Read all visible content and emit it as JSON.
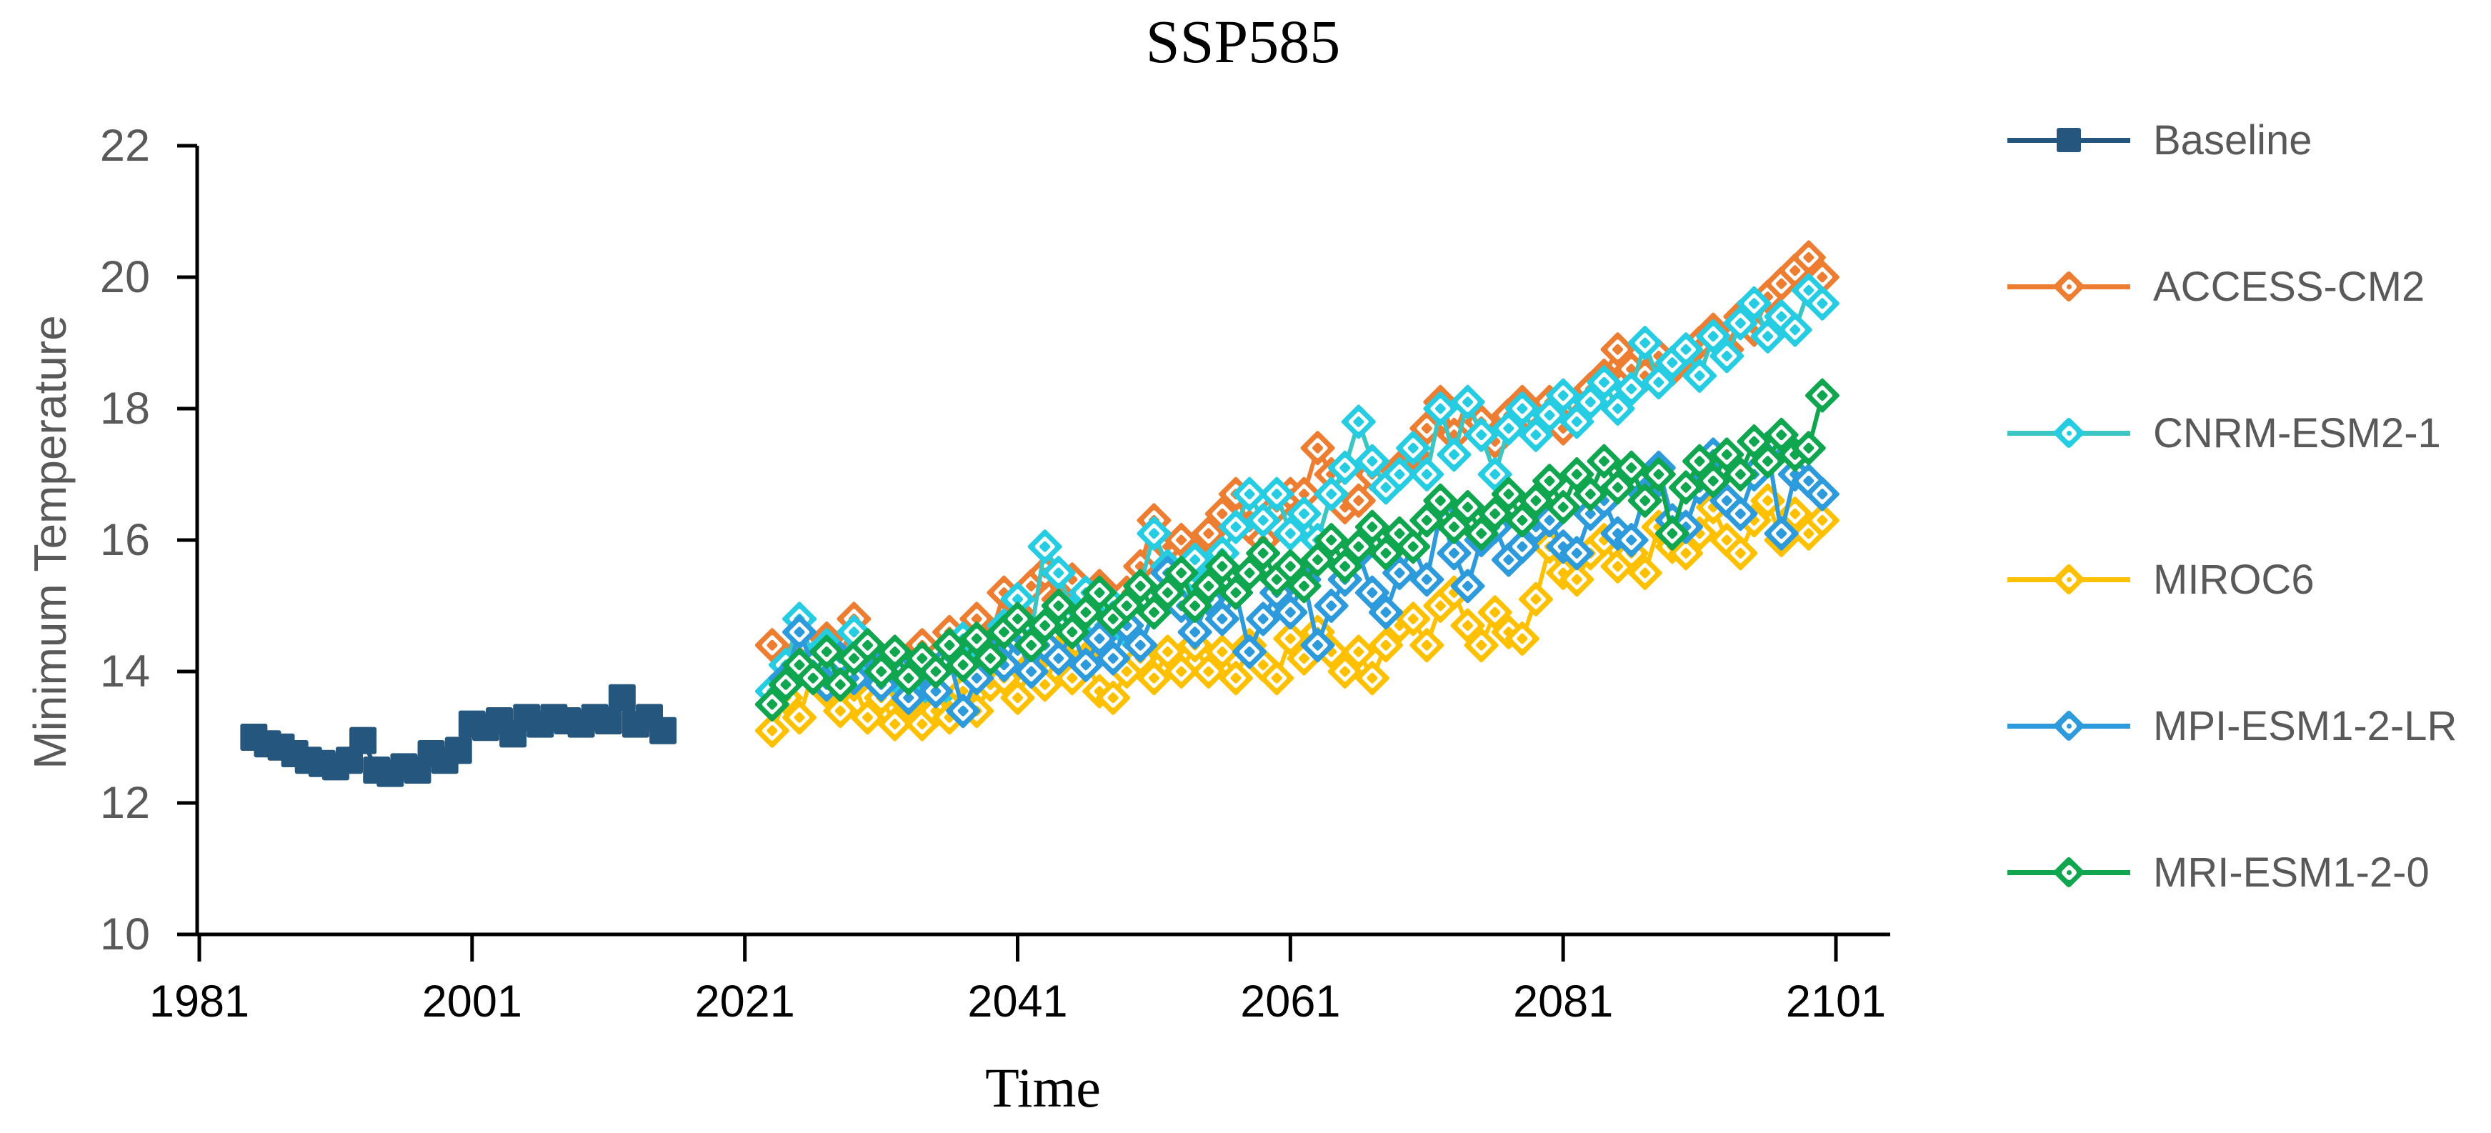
{
  "title": "SSP585",
  "colors": {
    "background": "#ffffff",
    "axis": "#000000",
    "x_tick_label": "#000000",
    "y_tick_label": "#595959",
    "gray_text": "#595959",
    "baseline": "#24567E",
    "access_cm2": "#ED7D31",
    "cnrm_esm2_1": "#26CDE2",
    "miroc6": "#FFC000",
    "mpi_esm1_2_lr": "#2D9BDB",
    "mri_esm1_2_0": "#10A64F"
  },
  "y_axis": {
    "label": "Minimum Temperature",
    "ticks": [
      "10",
      "12",
      "14",
      "16",
      "18",
      "20",
      "22"
    ],
    "min": 10,
    "max": 22
  },
  "x_axis": {
    "label": "Time",
    "ticks": [
      "1981",
      "2001",
      "2021",
      "2041",
      "2061",
      "2081",
      "2101"
    ],
    "min": 1981,
    "max": 2105
  },
  "legend": [
    {
      "label": "Baseline",
      "series": 0
    },
    {
      "label": "ACCESS-CM2",
      "series": 1
    },
    {
      "label": "CNRM-ESM2-1",
      "series": 2
    },
    {
      "label": "MIROC6",
      "series": 3
    },
    {
      "label": "MPI-ESM1-2-LR",
      "series": 4
    },
    {
      "label": "MRI-ESM1-2-0",
      "series": 5
    }
  ],
  "chart_data": {
    "type": "line",
    "title": "SSP585",
    "xlabel": "Time",
    "ylabel": "Minimum Temperature",
    "ylim": [
      10,
      22
    ],
    "xlim": [
      1981,
      2105
    ],
    "x_tick_values": [
      1981,
      2001,
      2021,
      2041,
      2061,
      2081,
      2101
    ],
    "y_tick_values": [
      10,
      12,
      14,
      16,
      18,
      20,
      22
    ],
    "grid": false,
    "legend_position": "right",
    "series": [
      {
        "name": "Baseline",
        "color": "#24567E",
        "marker": "square",
        "start_year": 1985,
        "values": [
          13.0,
          12.9,
          12.85,
          12.75,
          12.65,
          12.6,
          12.55,
          12.65,
          12.95,
          12.5,
          12.45,
          12.55,
          12.5,
          12.75,
          12.65,
          12.8,
          13.2,
          13.15,
          13.25,
          13.05,
          13.3,
          13.2,
          13.3,
          13.25,
          13.2,
          13.3,
          13.25,
          13.6,
          13.2,
          13.3,
          13.1
        ]
      },
      {
        "name": "ACCESS-CM2",
        "color": "#ED7D31",
        "marker": "diamond",
        "start_year": 2023,
        "values": [
          14.4,
          13.9,
          14.3,
          14.1,
          14.5,
          14.2,
          14.8,
          14.4,
          14.0,
          14.3,
          13.9,
          14.4,
          14.2,
          14.6,
          14.3,
          14.8,
          14.5,
          15.2,
          14.9,
          15.3,
          15.5,
          15.1,
          15.4,
          15.0,
          15.3,
          14.8,
          15.2,
          15.6,
          16.3,
          15.9,
          16.0,
          15.8,
          16.1,
          16.4,
          16.7,
          16.2,
          16.0,
          16.5,
          16.7,
          16.7,
          17.4,
          17.0,
          16.5,
          16.6,
          17.0,
          16.8,
          17.1,
          17.3,
          17.7,
          18.1,
          17.6,
          18.1,
          17.8,
          17.5,
          17.9,
          18.1,
          17.8,
          18.1,
          17.7,
          18.0,
          18.3,
          18.5,
          18.9,
          18.6,
          18.5,
          18.8,
          18.6,
          18.8,
          19.0,
          19.2,
          18.9,
          19.4,
          19.2,
          19.7,
          19.9,
          20.1,
          20.3,
          20.0
        ]
      },
      {
        "name": "CNRM-ESM2-1",
        "color": "#26CDE2",
        "line_color": "#3CC6C3",
        "marker": "diamond",
        "start_year": 2023,
        "values": [
          13.7,
          14.1,
          14.8,
          14.2,
          14.4,
          14.0,
          14.6,
          14.2,
          13.8,
          14.1,
          13.7,
          14.0,
          13.6,
          14.2,
          14.5,
          14.1,
          14.4,
          14.7,
          15.1,
          14.6,
          15.9,
          15.5,
          14.9,
          15.2,
          14.7,
          15.0,
          14.6,
          15.3,
          16.1,
          15.6,
          15.2,
          15.7,
          15.4,
          15.8,
          16.2,
          16.7,
          16.3,
          16.7,
          16.1,
          16.4,
          16.0,
          16.7,
          17.1,
          17.8,
          17.2,
          16.8,
          17.0,
          17.4,
          17.0,
          18.0,
          17.3,
          18.1,
          17.6,
          17.0,
          17.7,
          18.0,
          17.6,
          17.9,
          18.2,
          17.8,
          18.1,
          18.4,
          18.0,
          18.3,
          19.0,
          18.4,
          18.7,
          18.9,
          18.5,
          19.1,
          18.8,
          19.3,
          19.6,
          19.1,
          19.4,
          19.2,
          19.8,
          19.6
        ]
      },
      {
        "name": "MIROC6",
        "color": "#FFC000",
        "marker": "diamond",
        "start_year": 2023,
        "values": [
          13.1,
          13.6,
          13.3,
          14.0,
          13.7,
          13.4,
          13.8,
          13.3,
          13.6,
          13.2,
          13.5,
          13.2,
          13.4,
          13.3,
          13.7,
          13.4,
          13.8,
          13.9,
          13.6,
          14.1,
          13.8,
          14.3,
          13.9,
          14.2,
          13.7,
          13.6,
          14.0,
          14.2,
          13.9,
          14.3,
          14.0,
          14.4,
          14.0,
          14.3,
          13.9,
          14.4,
          14.1,
          13.9,
          14.5,
          14.2,
          14.6,
          14.3,
          14.0,
          14.3,
          13.9,
          14.4,
          14.7,
          14.8,
          14.4,
          15.0,
          15.2,
          14.7,
          14.4,
          14.9,
          14.6,
          14.5,
          15.1,
          15.9,
          15.5,
          15.4,
          15.8,
          16.0,
          15.6,
          15.8,
          15.5,
          16.2,
          15.9,
          15.8,
          16.1,
          16.5,
          16.0,
          15.8,
          16.3,
          16.6,
          16.0,
          16.4,
          16.1,
          16.3
        ]
      },
      {
        "name": "MPI-ESM1-2-LR",
        "color": "#2D9BDB",
        "marker": "diamond",
        "start_year": 2023,
        "values": [
          13.5,
          13.9,
          14.6,
          14.1,
          13.8,
          14.2,
          13.9,
          14.3,
          13.8,
          14.1,
          13.6,
          14.0,
          13.7,
          14.2,
          13.4,
          13.9,
          14.3,
          14.1,
          14.5,
          14.0,
          14.4,
          14.2,
          14.6,
          14.1,
          14.5,
          14.2,
          14.7,
          14.4,
          14.9,
          15.5,
          15.0,
          14.6,
          15.1,
          14.8,
          15.2,
          14.3,
          14.8,
          15.2,
          14.9,
          15.4,
          14.4,
          15.0,
          15.4,
          15.8,
          15.2,
          14.9,
          15.5,
          15.9,
          15.4,
          16.4,
          15.8,
          15.3,
          16.0,
          16.2,
          15.7,
          15.9,
          16.2,
          16.3,
          15.9,
          15.8,
          16.4,
          16.6,
          16.1,
          16.0,
          16.7,
          17.1,
          16.3,
          16.2,
          16.8,
          17.3,
          16.6,
          16.4,
          17.0,
          17.4,
          16.1,
          17.0,
          16.9,
          16.7
        ]
      },
      {
        "name": "MRI-ESM1-2-0",
        "color": "#10A64F",
        "marker": "diamond",
        "start_year": 2023,
        "values": [
          13.5,
          13.8,
          14.1,
          13.9,
          14.3,
          13.8,
          14.2,
          14.4,
          14.0,
          14.3,
          13.9,
          14.2,
          14.0,
          14.4,
          14.1,
          14.5,
          14.2,
          14.6,
          14.8,
          14.4,
          14.7,
          15.0,
          14.6,
          14.9,
          15.2,
          14.8,
          15.0,
          15.3,
          14.9,
          15.2,
          15.5,
          15.0,
          15.3,
          15.6,
          15.2,
          15.5,
          15.8,
          15.4,
          15.6,
          15.3,
          15.7,
          16.0,
          15.6,
          15.9,
          16.2,
          15.8,
          16.1,
          15.9,
          16.3,
          16.6,
          16.2,
          16.5,
          16.1,
          16.4,
          16.7,
          16.3,
          16.6,
          16.9,
          16.5,
          17.0,
          16.7,
          17.2,
          16.8,
          17.1,
          16.6,
          17.0,
          16.1,
          16.8,
          17.2,
          16.9,
          17.3,
          17.0,
          17.5,
          17.2,
          17.6,
          17.3,
          17.4,
          18.2
        ]
      }
    ]
  }
}
